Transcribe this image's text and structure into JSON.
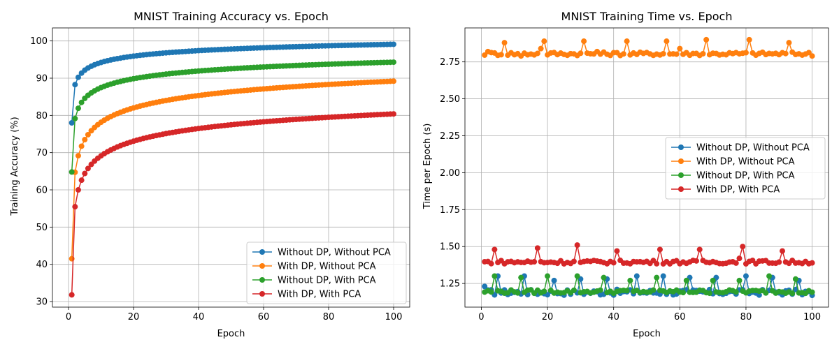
{
  "chart_data": [
    {
      "type": "line",
      "title": "MNIST Training Accuracy vs. Epoch",
      "xlabel": "Epoch",
      "ylabel": "Training Accuracy (%)",
      "xlim": [
        -4.95,
        104.95
      ],
      "ylim": [
        28.5,
        103.5
      ],
      "xticks": [
        0,
        20,
        40,
        60,
        80,
        100
      ],
      "yticks": [
        30,
        40,
        50,
        60,
        70,
        80,
        90,
        100
      ],
      "grid": true,
      "legend": "lower-right",
      "x_range": {
        "start": 1,
        "end": 100
      },
      "series": [
        {
          "name": "Without DP, Without PCA",
          "color": "#1f77b4",
          "start": 78.0,
          "end": 99.1,
          "a": 9.03,
          "b": 0.315,
          "noise": 0.0
        },
        {
          "name": "With DP, Without PCA",
          "color": "#ff7f0e",
          "start": 41.5,
          "end": 89.2,
          "a": 29.5,
          "b": 0.5,
          "noise": 0.0
        },
        {
          "name": "Without DP, With PCA",
          "color": "#2ca02c",
          "start": 64.8,
          "end": 94.3,
          "a": 17.5,
          "b": 0.32,
          "noise": 0.0
        },
        {
          "name": "With DP, With PCA",
          "color": "#d62728",
          "start": 31.8,
          "end": 80.4,
          "a": 33.0,
          "b": 0.52,
          "noise": 0.0
        }
      ]
    },
    {
      "type": "line",
      "title": "MNIST Training Time vs. Epoch",
      "xlabel": "Epoch",
      "ylabel": "Time per Epoch (s)",
      "xlim": [
        -4.95,
        104.95
      ],
      "ylim": [
        1.09,
        2.98
      ],
      "xticks": [
        0,
        20,
        40,
        60,
        80,
        100
      ],
      "yticks": [
        1.25,
        1.5,
        1.75,
        2.0,
        2.25,
        2.5,
        2.75
      ],
      "grid": true,
      "legend": "center-right",
      "x_range": {
        "start": 1,
        "end": 100
      },
      "series": [
        {
          "name": "Without DP, Without PCA",
          "color": "#1f77b4",
          "base": 1.19,
          "spread": 0.02,
          "spikes": [
            [
              1,
              1.23
            ],
            [
              5,
              1.3
            ],
            [
              13,
              1.3
            ],
            [
              22,
              1.27
            ],
            [
              30,
              1.28
            ],
            [
              38,
              1.28
            ],
            [
              47,
              1.3
            ],
            [
              55,
              1.3
            ],
            [
              63,
              1.29
            ],
            [
              71,
              1.29
            ],
            [
              80,
              1.3
            ],
            [
              88,
              1.29
            ],
            [
              96,
              1.27
            ],
            [
              100,
              1.17
            ]
          ]
        },
        {
          "name": "With DP, Without PCA",
          "color": "#ff7f0e",
          "base": 2.805,
          "spread": 0.012,
          "spikes": [
            [
              2,
              2.82
            ],
            [
              7,
              2.88
            ],
            [
              12,
              2.79
            ],
            [
              18,
              2.84
            ],
            [
              19,
              2.89
            ],
            [
              31,
              2.89
            ],
            [
              35,
              2.82
            ],
            [
              44,
              2.89
            ],
            [
              56,
              2.89
            ],
            [
              60,
              2.84
            ],
            [
              68,
              2.9
            ],
            [
              81,
              2.9
            ],
            [
              93,
              2.88
            ],
            [
              100,
              2.79
            ]
          ]
        },
        {
          "name": "Without DP, With PCA",
          "color": "#2ca02c",
          "base": 1.195,
          "spread": 0.012,
          "spikes": [
            [
              4,
              1.3
            ],
            [
              12,
              1.29
            ],
            [
              20,
              1.3
            ],
            [
              29,
              1.3
            ],
            [
              37,
              1.29
            ],
            [
              45,
              1.27
            ],
            [
              53,
              1.29
            ],
            [
              62,
              1.27
            ],
            [
              70,
              1.27
            ],
            [
              78,
              1.27
            ],
            [
              87,
              1.3
            ],
            [
              95,
              1.28
            ]
          ]
        },
        {
          "name": "With DP, With PCA",
          "color": "#d62728",
          "base": 1.395,
          "spread": 0.012,
          "spikes": [
            [
              4,
              1.48
            ],
            [
              17,
              1.49
            ],
            [
              29,
              1.51
            ],
            [
              41,
              1.47
            ],
            [
              54,
              1.48
            ],
            [
              66,
              1.48
            ],
            [
              78,
              1.42
            ],
            [
              79,
              1.5
            ],
            [
              91,
              1.47
            ]
          ]
        }
      ]
    }
  ]
}
